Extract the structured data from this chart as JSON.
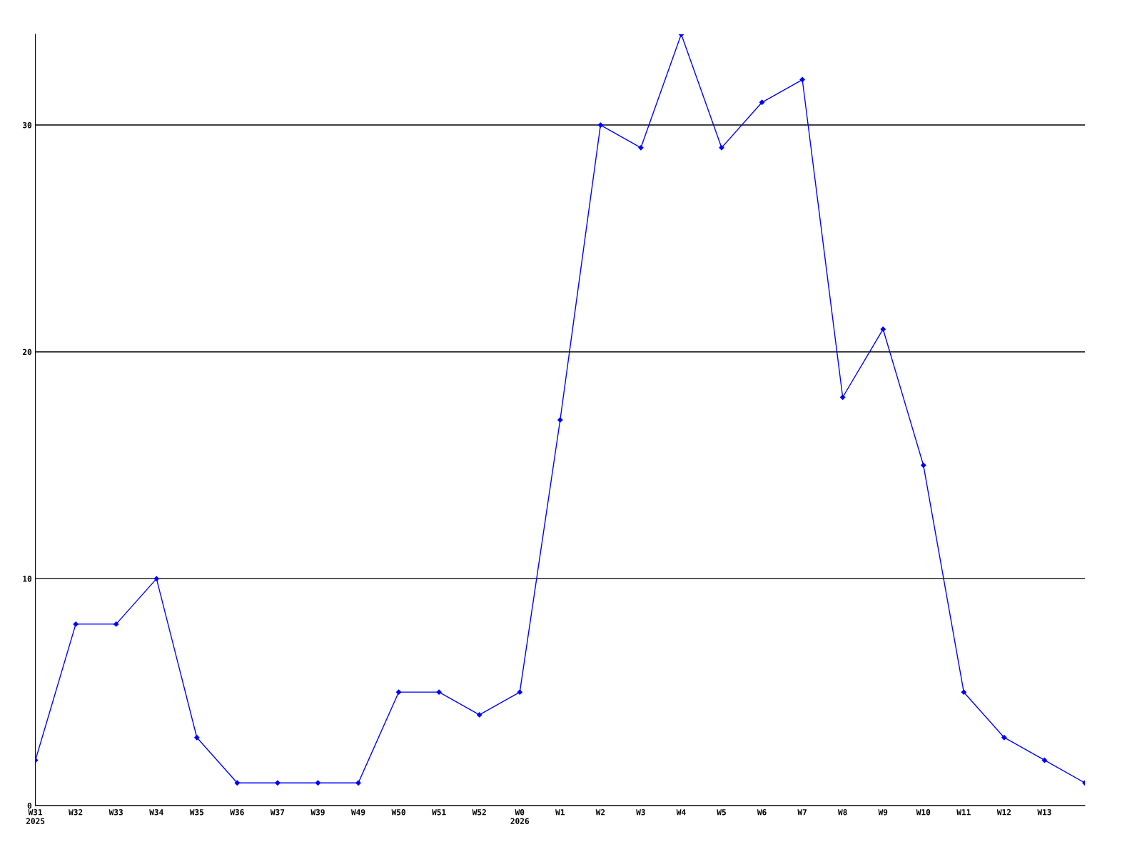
{
  "chart_data": {
    "type": "line",
    "categories": [
      "W31\n2025",
      "W32",
      "W33",
      "W34",
      "W35",
      "W36",
      "W37",
      "W39",
      "W49",
      "W50",
      "W51",
      "W52",
      "W0\n2026",
      "W1",
      "W2",
      "W3",
      "W4",
      "W5",
      "W6",
      "W7",
      "W8",
      "W9",
      "W10",
      "W11",
      "W12",
      "W13",
      null
    ],
    "series": [
      {
        "color": "#0000ff",
        "values": [
          2,
          8,
          8,
          10,
          3,
          1,
          1,
          1,
          1,
          5,
          5,
          4,
          5,
          17,
          30,
          29,
          34,
          29,
          31,
          32,
          18,
          21,
          15,
          5,
          3,
          2,
          1
        ]
      }
    ],
    "ylim": [
      0,
      34
    ],
    "yticks": [
      0,
      10,
      20,
      30
    ],
    "grid": "y",
    "marker": "diamond",
    "line_style": "solid"
  }
}
